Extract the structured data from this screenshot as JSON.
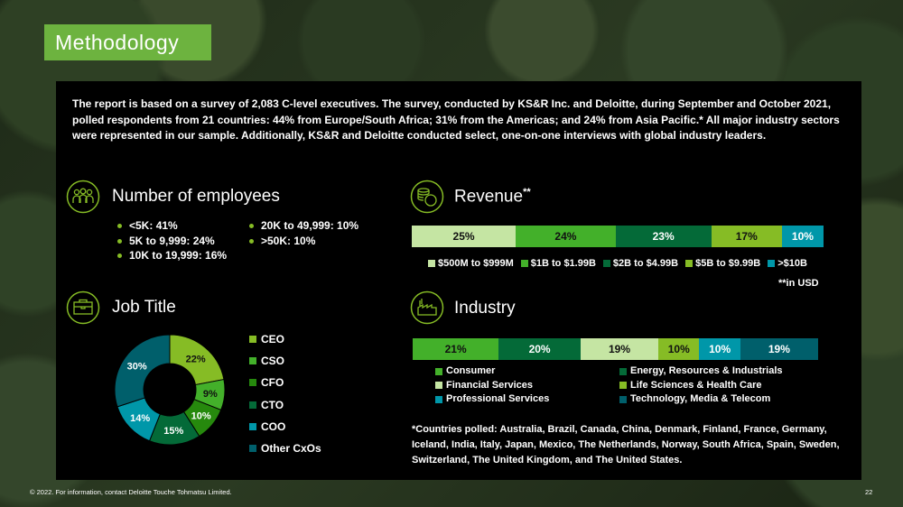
{
  "title": "Methodology",
  "intro": "The report is based on a survey of 2,083 C-level executives. The survey, conducted by KS&R Inc. and Deloitte, during September and October 2021, polled respondents from 21 countries: 44% from Europe/South Africa; 31% from the Americas; and 24% from Asia Pacific.* All major industry sectors were represented in our sample. Additionally, KS&R and Deloitte conducted select, one-on-one interviews with global industry leaders.",
  "employees": {
    "title": "Number of employees",
    "icon": "people-group-icon",
    "col1": [
      {
        "label": "<5K: ",
        "value": "41%"
      },
      {
        "label": "5K to 9,999: ",
        "value": "24%"
      },
      {
        "label": "10K to 19,999: ",
        "value": "16%"
      }
    ],
    "col2": [
      {
        "label": "20K to 49,999: ",
        "value": "10%"
      },
      {
        "label": ">50K: ",
        "value": "10%"
      }
    ]
  },
  "revenue": {
    "title": "Revenue",
    "title_sup": "**",
    "icon": "coins-icon",
    "note": "**in USD",
    "segments": [
      {
        "label": "$500M to $999M",
        "value": 25,
        "display": "25%",
        "color": "#c5e5a3"
      },
      {
        "label": "$1B to $1.99B",
        "value": 24,
        "display": "24%",
        "color": "#43b02a"
      },
      {
        "label": "$2B to $4.99B",
        "value": 23,
        "display": "23%",
        "color": "#046a38"
      },
      {
        "label": "$5B to $9.99B",
        "value": 17,
        "display": "17%",
        "color": "#86bc25"
      },
      {
        "label": ">$10B",
        "value": 10,
        "display": "10%",
        "color": "#0097a9"
      }
    ]
  },
  "job": {
    "title": "Job Title",
    "icon": "briefcase-icon",
    "slices": [
      {
        "label": "CEO",
        "value": 22,
        "display": "22%",
        "color": "#86bc25"
      },
      {
        "label": "CSO",
        "value": 9,
        "display": "9%",
        "color": "#43b02a"
      },
      {
        "label": "CFO",
        "value": 10,
        "display": "10%",
        "color": "#26890d"
      },
      {
        "label": "CTO",
        "value": 15,
        "display": "15%",
        "color": "#046a38"
      },
      {
        "label": "COO",
        "value": 14,
        "display": "14%",
        "color": "#0097a9"
      },
      {
        "label": "Other CxOs",
        "value": 30,
        "display": "30%",
        "color": "#005f6b"
      }
    ]
  },
  "industry": {
    "title": "Industry",
    "icon": "factory-icon",
    "segments": [
      {
        "label": "Consumer",
        "value": 21,
        "display": "21%",
        "color": "#43b02a"
      },
      {
        "label": "Energy, Resources & Industrials",
        "value": 20,
        "display": "20%",
        "color": "#046a38"
      },
      {
        "label": "Financial Services",
        "value": 19,
        "display": "19%",
        "color": "#c5e5a3"
      },
      {
        "label": "Life Sciences & Health Care",
        "value": 10,
        "display": "10%",
        "color": "#86bc25"
      },
      {
        "label": "Professional Services",
        "value": 10,
        "display": "10%",
        "color": "#0097a9"
      },
      {
        "label": "Technology, Media & Telecom",
        "value": 19,
        "display": "19%",
        "color": "#005f6b"
      }
    ]
  },
  "countries": "*Countries polled: Australia, Brazil, Canada, China, Denmark, Finland, France, Germany, Iceland, India, Italy, Japan, Mexico, The Netherlands, Norway, South Africa, Spain, Sweden, Switzerland, The United Kingdom, and The United States.",
  "footer": "© 2022. For information, contact Deloitte Touche Tohmatsu Limited.",
  "page_number": "22",
  "chart_data": [
    {
      "type": "bar",
      "title": "Revenue",
      "stacked": true,
      "categories": [
        "$500M to $999M",
        "$1B to $1.99B",
        "$2B to $4.99B",
        "$5B to $9.99B",
        ">$10B"
      ],
      "values": [
        25,
        24,
        23,
        17,
        10
      ]
    },
    {
      "type": "pie",
      "title": "Job Title",
      "donut": true,
      "categories": [
        "CEO",
        "CSO",
        "CFO",
        "CTO",
        "COO",
        "Other CxOs"
      ],
      "values": [
        22,
        9,
        10,
        15,
        14,
        30
      ]
    },
    {
      "type": "bar",
      "title": "Industry",
      "stacked": true,
      "categories": [
        "Consumer",
        "Energy, Resources & Industrials",
        "Financial Services",
        "Life Sciences & Health Care",
        "Professional Services",
        "Technology, Media & Telecom"
      ],
      "values": [
        21,
        20,
        19,
        10,
        10,
        19
      ]
    }
  ]
}
